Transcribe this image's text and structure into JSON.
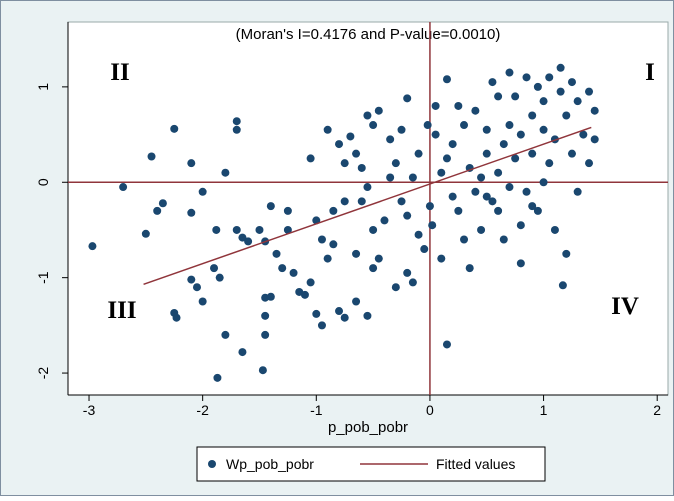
{
  "chart_data": {
    "type": "scatter",
    "title": "(Moran's I=0.4176 and P-value=0.0010)",
    "x_label": "p_pob_pobr",
    "xlim": [
      -3.185,
      2.095
    ],
    "ylim": [
      -2.23,
      1.68
    ],
    "xticks": [
      -3,
      -2,
      -1,
      0,
      1,
      2
    ],
    "yticks": [
      -2,
      -1,
      0,
      1
    ],
    "xline": 0,
    "yline": 0,
    "line_color": "#90353b",
    "legend": "bottom",
    "quadrant_labels": [
      "I",
      "II",
      "III",
      "IV"
    ],
    "series": [
      {
        "name": "Wp_pob_pobr",
        "color": "#1a476f",
        "kind": "scatter",
        "x": [
          -2.97,
          -2.7,
          -2.45,
          -2.25,
          -2.35,
          -2.4,
          -2.5,
          -2.1,
          -2.1,
          -2.0,
          -2.25,
          -2.23,
          -2.1,
          -2.05,
          -2.0,
          -1.9,
          -1.85,
          -1.88,
          -1.8,
          -1.65,
          -1.87,
          -1.47,
          -1.45,
          -1.4,
          -1.45,
          -1.45,
          -1.7,
          -1.7,
          -1.8,
          -1.65,
          -1.7,
          -1.6,
          -1.5,
          -1.45,
          -1.4,
          -1.35,
          -1.3,
          -1.25,
          -1.2,
          -1.15,
          -1.1,
          -1.05,
          -1.0,
          -0.95,
          -1.05,
          -1.0,
          -0.95,
          -0.9,
          -0.85,
          -0.8,
          -0.75,
          -0.65,
          -0.9,
          -0.8,
          -0.75,
          -0.7,
          -0.65,
          -0.6,
          -0.55,
          -0.75,
          -0.6,
          -0.5,
          -0.5,
          -0.55,
          -0.45,
          -0.4,
          -0.35,
          -0.3,
          -0.25,
          -0.2,
          -0.15,
          -0.55,
          -0.45,
          -0.5,
          -0.35,
          -0.3,
          -0.25,
          -0.2,
          -0.15,
          -0.1,
          -0.1,
          -0.05,
          0,
          0.05,
          0.05,
          0.02,
          0.1,
          0.15,
          0.15,
          0.2,
          0.25,
          0.3,
          0.3,
          0.35,
          0.4,
          0.4,
          0.45,
          0.5,
          0.5,
          0.55,
          0.55,
          0.6,
          0.6,
          0.65,
          0.65,
          0.7,
          0.7,
          0.7,
          0.75,
          0.75,
          0.8,
          0.8,
          0.85,
          0.85,
          0.8,
          0.9,
          0.9,
          0.95,
          0.95,
          1.0,
          1.0,
          1.05,
          1.05,
          1.1,
          1.1,
          1.15,
          1.15,
          1.2,
          1.2,
          1.17,
          1.25,
          1.25,
          1.3,
          1.3,
          1.35,
          1.4,
          1.4,
          1.45,
          1.45,
          0.2,
          0.25,
          -0.02,
          0.1,
          0.35,
          0.45,
          0.6,
          0.9,
          1.0,
          0.5,
          0.15,
          -0.2,
          -0.65,
          -0.85,
          -1.25
        ],
        "values": [
          -0.67,
          -0.05,
          0.27,
          0.56,
          -0.22,
          -0.3,
          -0.54,
          0.2,
          -0.32,
          -0.1,
          -1.37,
          -1.42,
          -1.02,
          -1.1,
          -1.25,
          -0.9,
          -1.0,
          -0.5,
          -1.6,
          -1.78,
          -2.05,
          -1.97,
          -1.21,
          -1.2,
          -1.4,
          -1.6,
          0.64,
          0.55,
          0.1,
          -0.58,
          -0.5,
          -0.62,
          -0.5,
          -0.62,
          -0.25,
          -0.75,
          -0.9,
          -0.5,
          -0.95,
          -1.15,
          -1.18,
          -1.05,
          -1.38,
          -1.5,
          0.25,
          -0.4,
          -0.6,
          -0.8,
          -0.3,
          -1.35,
          -1.42,
          -1.25,
          0.55,
          0.4,
          0.2,
          0.48,
          0.3,
          0.15,
          -0.05,
          -0.2,
          -0.2,
          -0.5,
          -0.9,
          -1.4,
          -0.8,
          -0.4,
          0.05,
          -1.1,
          -0.2,
          -0.95,
          -1.05,
          0.7,
          0.75,
          0.6,
          0.45,
          0.2,
          0.55,
          0.88,
          0.05,
          0.3,
          -0.55,
          -0.7,
          -0.25,
          0.5,
          0.8,
          -0.45,
          0.1,
          1.08,
          -1.7,
          0.4,
          -0.3,
          0.6,
          -0.6,
          0.15,
          -0.1,
          0.75,
          -0.5,
          0.3,
          0.55,
          -0.2,
          1.05,
          0.9,
          0.1,
          -0.6,
          0.4,
          1.15,
          0.6,
          -0.05,
          0.25,
          0.9,
          -0.45,
          0.5,
          1.1,
          -0.1,
          -0.85,
          0.7,
          0.3,
          1.0,
          -0.3,
          0.55,
          0.85,
          1.1,
          0.2,
          -0.5,
          0.45,
          0.95,
          1.2,
          -0.75,
          0.7,
          -1.08,
          0.3,
          1.05,
          0.85,
          -0.1,
          0.5,
          0.95,
          0.2,
          0.45,
          0.75,
          -0.15,
          0.8,
          0.6,
          -0.8,
          -0.9,
          0.05,
          -0.3,
          -0.25,
          0.0,
          -0.15,
          0.25,
          -0.35,
          -0.75,
          -0.65,
          -0.3
        ]
      },
      {
        "name": "Fitted values",
        "color": "#90353b",
        "kind": "line",
        "x": [
          -2.52,
          1.42
        ],
        "values": [
          -1.07,
          0.575
        ]
      }
    ]
  }
}
